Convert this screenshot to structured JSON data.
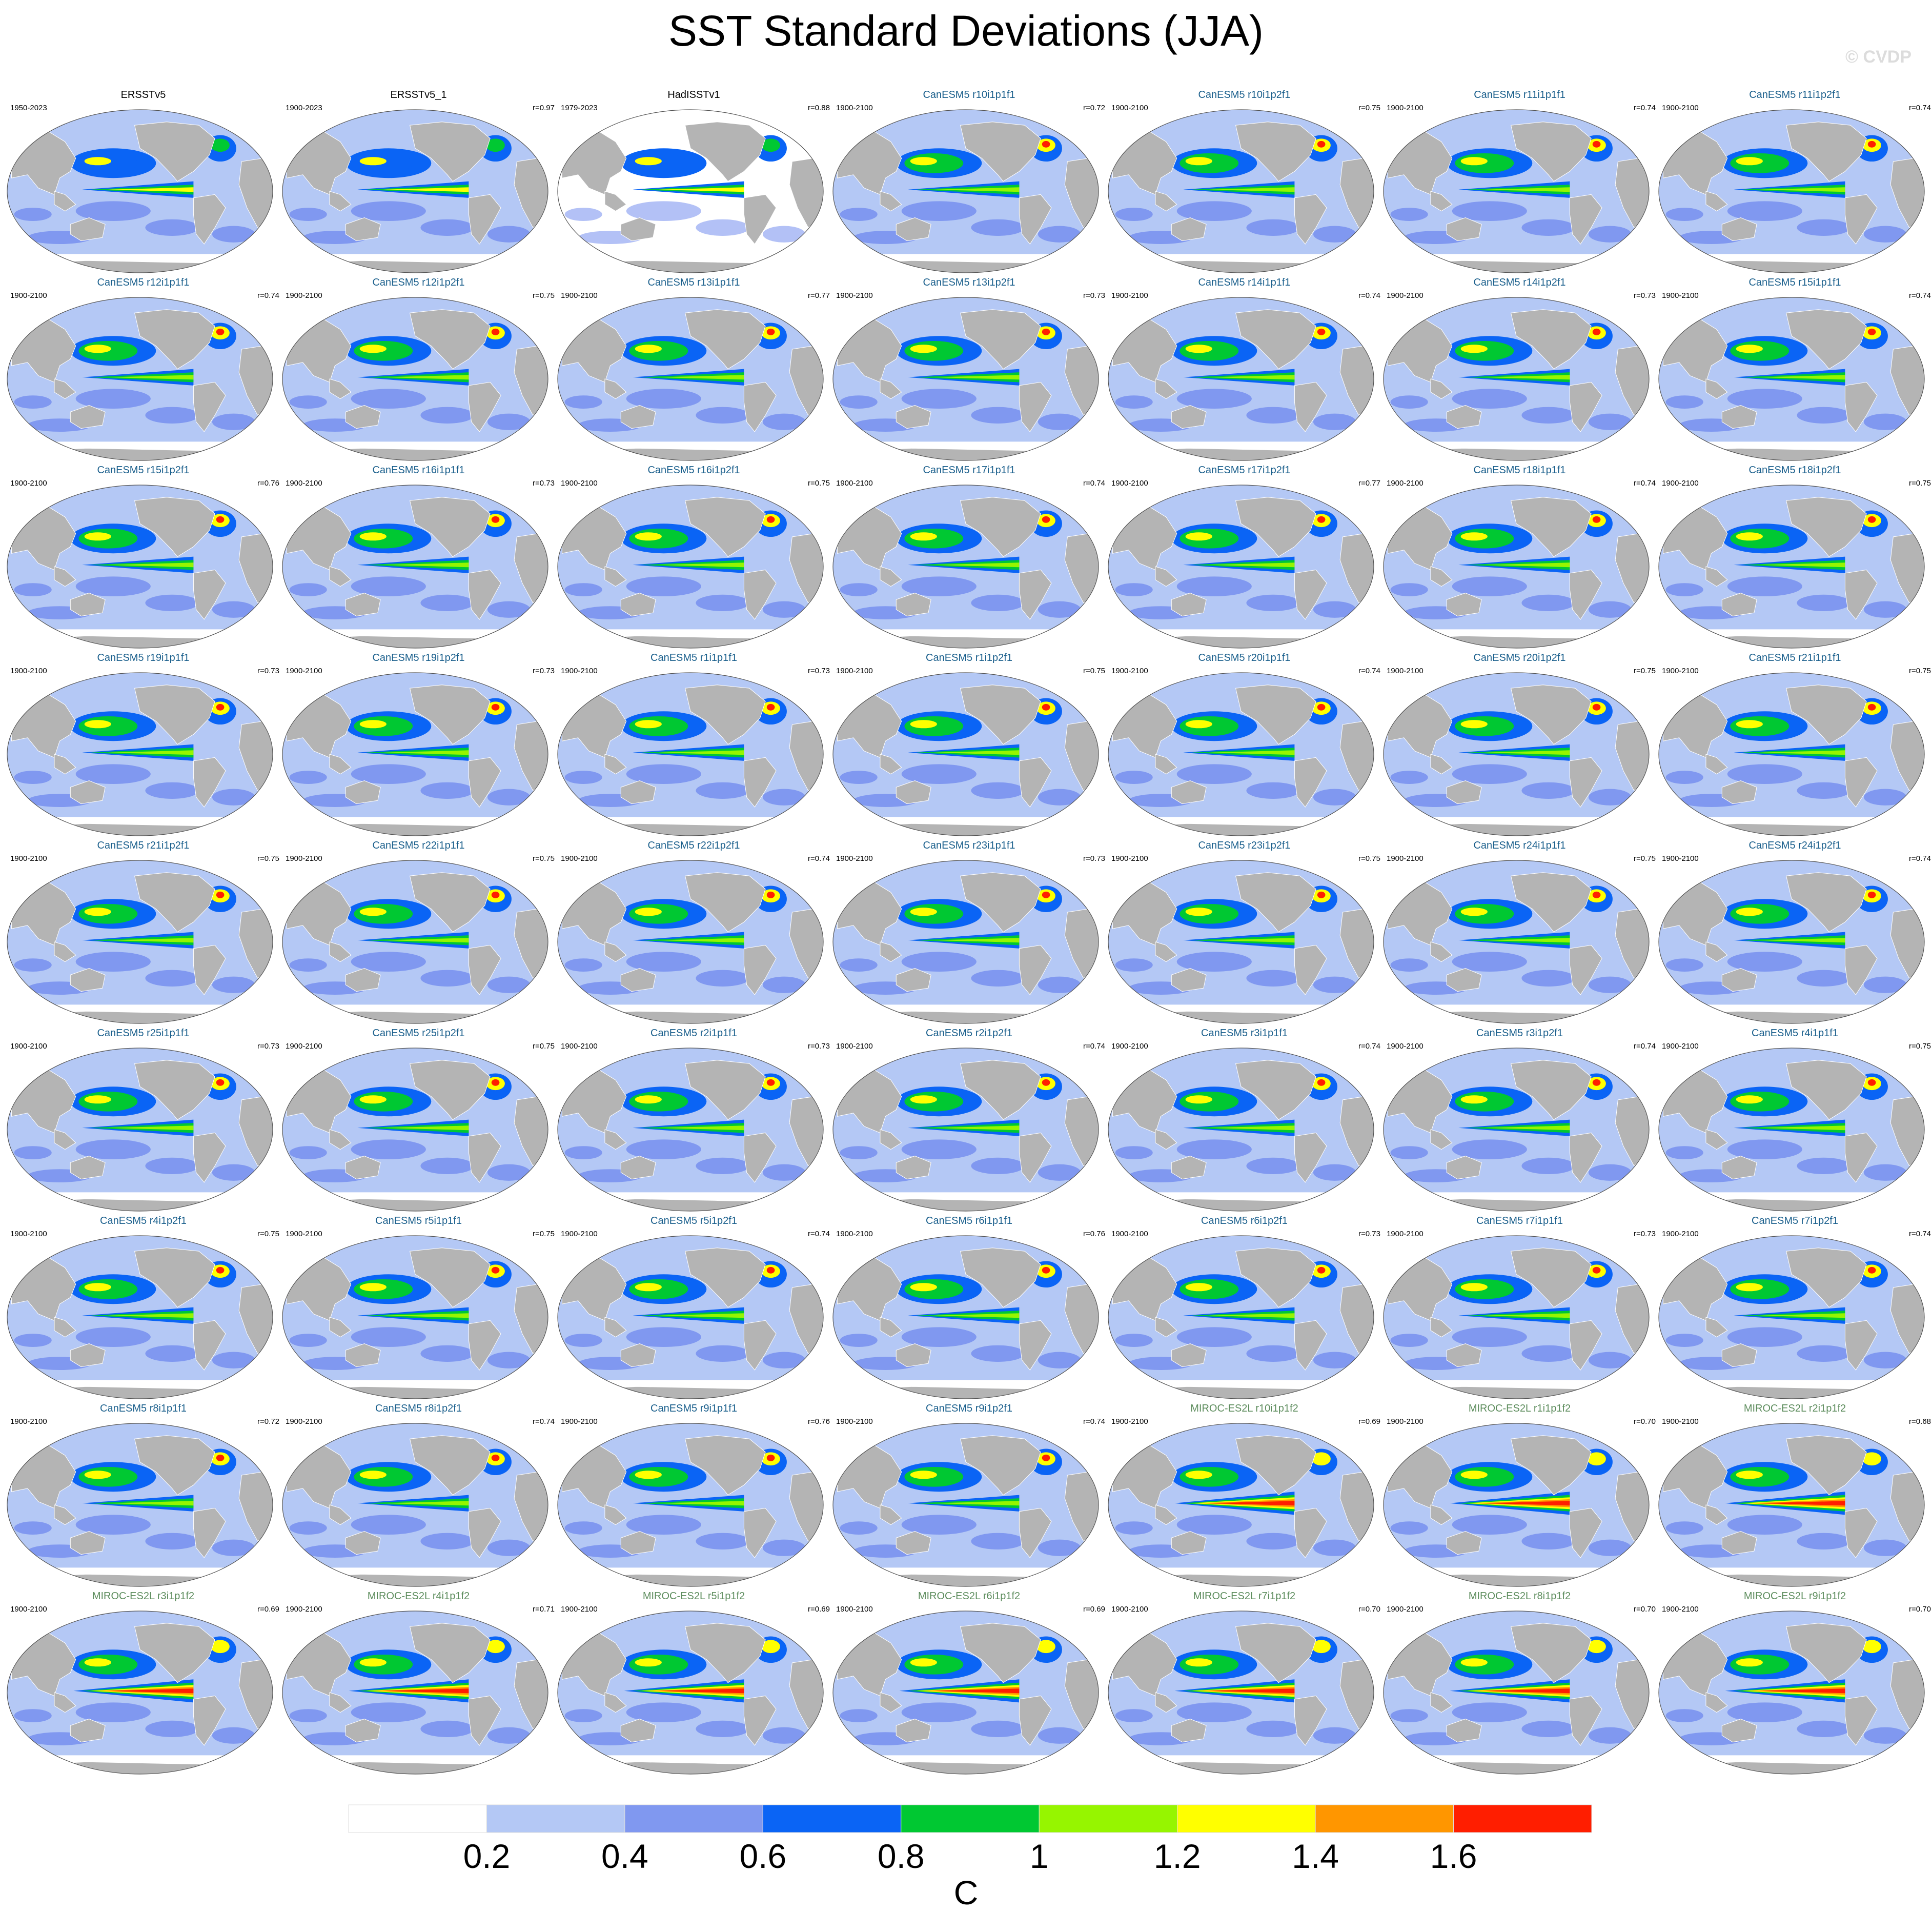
{
  "title": "SST Standard Deviations (JJA)",
  "copyright": "© CVDP",
  "colors": {
    "land": "#b4b4b4",
    "obs_title": "#000000",
    "canesm_title": "#1a5f8c",
    "miroc_title": "#5c8c5c"
  },
  "chart_data": {
    "type": "heatmap",
    "description_kind": "grid of global map panels",
    "colorbar": {
      "unit": "C",
      "tick_labels": [
        "0.2",
        "0.4",
        "0.6",
        "0.8",
        "1",
        "1.2",
        "1.4",
        "1.6"
      ],
      "levels": [
        0.2,
        0.4,
        0.6,
        0.8,
        1.0,
        1.2,
        1.4,
        1.6
      ],
      "colors": [
        "#ffffff",
        "#b4c8f5",
        "#8098f0",
        "#0a64f5",
        "#00c832",
        "#96f500",
        "#ffff00",
        "#ff9600",
        "#ff1e00"
      ]
    },
    "panels": [
      {
        "title": "ERSSTv5",
        "years": "1950-2023",
        "r": "",
        "group": "obs"
      },
      {
        "title": "ERSSTv5_1",
        "years": "1900-2023",
        "r": "r=0.97",
        "group": "obs"
      },
      {
        "title": "HadISSTv1",
        "years": "1979-2023",
        "r": "r=0.88",
        "group": "obs"
      },
      {
        "title": "CanESM5 r10i1p1f1",
        "years": "1900-2100",
        "r": "r=0.72",
        "group": "canesm"
      },
      {
        "title": "CanESM5 r10i1p2f1",
        "years": "1900-2100",
        "r": "r=0.75",
        "group": "canesm"
      },
      {
        "title": "CanESM5 r11i1p1f1",
        "years": "1900-2100",
        "r": "r=0.74",
        "group": "canesm"
      },
      {
        "title": "CanESM5 r11i1p2f1",
        "years": "1900-2100",
        "r": "r=0.74",
        "group": "canesm"
      },
      {
        "title": "CanESM5 r12i1p1f1",
        "years": "1900-2100",
        "r": "r=0.74",
        "group": "canesm"
      },
      {
        "title": "CanESM5 r12i1p2f1",
        "years": "1900-2100",
        "r": "r=0.75",
        "group": "canesm"
      },
      {
        "title": "CanESM5 r13i1p1f1",
        "years": "1900-2100",
        "r": "r=0.77",
        "group": "canesm"
      },
      {
        "title": "CanESM5 r13i1p2f1",
        "years": "1900-2100",
        "r": "r=0.73",
        "group": "canesm"
      },
      {
        "title": "CanESM5 r14i1p1f1",
        "years": "1900-2100",
        "r": "r=0.74",
        "group": "canesm"
      },
      {
        "title": "CanESM5 r14i1p2f1",
        "years": "1900-2100",
        "r": "r=0.73",
        "group": "canesm"
      },
      {
        "title": "CanESM5 r15i1p1f1",
        "years": "1900-2100",
        "r": "r=0.74",
        "group": "canesm"
      },
      {
        "title": "CanESM5 r15i1p2f1",
        "years": "1900-2100",
        "r": "r=0.76",
        "group": "canesm"
      },
      {
        "title": "CanESM5 r16i1p1f1",
        "years": "1900-2100",
        "r": "r=0.73",
        "group": "canesm"
      },
      {
        "title": "CanESM5 r16i1p2f1",
        "years": "1900-2100",
        "r": "r=0.75",
        "group": "canesm"
      },
      {
        "title": "CanESM5 r17i1p1f1",
        "years": "1900-2100",
        "r": "r=0.74",
        "group": "canesm"
      },
      {
        "title": "CanESM5 r17i1p2f1",
        "years": "1900-2100",
        "r": "r=0.77",
        "group": "canesm"
      },
      {
        "title": "CanESM5 r18i1p1f1",
        "years": "1900-2100",
        "r": "r=0.74",
        "group": "canesm"
      },
      {
        "title": "CanESM5 r18i1p2f1",
        "years": "1900-2100",
        "r": "r=0.75",
        "group": "canesm"
      },
      {
        "title": "CanESM5 r19i1p1f1",
        "years": "1900-2100",
        "r": "r=0.73",
        "group": "canesm"
      },
      {
        "title": "CanESM5 r19i1p2f1",
        "years": "1900-2100",
        "r": "r=0.73",
        "group": "canesm"
      },
      {
        "title": "CanESM5 r1i1p1f1",
        "years": "1900-2100",
        "r": "r=0.73",
        "group": "canesm"
      },
      {
        "title": "CanESM5 r1i1p2f1",
        "years": "1900-2100",
        "r": "r=0.75",
        "group": "canesm"
      },
      {
        "title": "CanESM5 r20i1p1f1",
        "years": "1900-2100",
        "r": "r=0.74",
        "group": "canesm"
      },
      {
        "title": "CanESM5 r20i1p2f1",
        "years": "1900-2100",
        "r": "r=0.75",
        "group": "canesm"
      },
      {
        "title": "CanESM5 r21i1p1f1",
        "years": "1900-2100",
        "r": "r=0.75",
        "group": "canesm"
      },
      {
        "title": "CanESM5 r21i1p2f1",
        "years": "1900-2100",
        "r": "r=0.75",
        "group": "canesm"
      },
      {
        "title": "CanESM5 r22i1p1f1",
        "years": "1900-2100",
        "r": "r=0.75",
        "group": "canesm"
      },
      {
        "title": "CanESM5 r22i1p2f1",
        "years": "1900-2100",
        "r": "r=0.74",
        "group": "canesm"
      },
      {
        "title": "CanESM5 r23i1p1f1",
        "years": "1900-2100",
        "r": "r=0.73",
        "group": "canesm"
      },
      {
        "title": "CanESM5 r23i1p2f1",
        "years": "1900-2100",
        "r": "r=0.75",
        "group": "canesm"
      },
      {
        "title": "CanESM5 r24i1p1f1",
        "years": "1900-2100",
        "r": "r=0.75",
        "group": "canesm"
      },
      {
        "title": "CanESM5 r24i1p2f1",
        "years": "1900-2100",
        "r": "r=0.74",
        "group": "canesm"
      },
      {
        "title": "CanESM5 r25i1p1f1",
        "years": "1900-2100",
        "r": "r=0.73",
        "group": "canesm"
      },
      {
        "title": "CanESM5 r25i1p2f1",
        "years": "1900-2100",
        "r": "r=0.75",
        "group": "canesm"
      },
      {
        "title": "CanESM5 r2i1p1f1",
        "years": "1900-2100",
        "r": "r=0.73",
        "group": "canesm"
      },
      {
        "title": "CanESM5 r2i1p2f1",
        "years": "1900-2100",
        "r": "r=0.74",
        "group": "canesm"
      },
      {
        "title": "CanESM5 r3i1p1f1",
        "years": "1900-2100",
        "r": "r=0.74",
        "group": "canesm"
      },
      {
        "title": "CanESM5 r3i1p2f1",
        "years": "1900-2100",
        "r": "r=0.74",
        "group": "canesm"
      },
      {
        "title": "CanESM5 r4i1p1f1",
        "years": "1900-2100",
        "r": "r=0.75",
        "group": "canesm"
      },
      {
        "title": "CanESM5 r4i1p2f1",
        "years": "1900-2100",
        "r": "r=0.75",
        "group": "canesm"
      },
      {
        "title": "CanESM5 r5i1p1f1",
        "years": "1900-2100",
        "r": "r=0.75",
        "group": "canesm"
      },
      {
        "title": "CanESM5 r5i1p2f1",
        "years": "1900-2100",
        "r": "r=0.74",
        "group": "canesm"
      },
      {
        "title": "CanESM5 r6i1p1f1",
        "years": "1900-2100",
        "r": "r=0.76",
        "group": "canesm"
      },
      {
        "title": "CanESM5 r6i1p2f1",
        "years": "1900-2100",
        "r": "r=0.73",
        "group": "canesm"
      },
      {
        "title": "CanESM5 r7i1p1f1",
        "years": "1900-2100",
        "r": "r=0.73",
        "group": "canesm"
      },
      {
        "title": "CanESM5 r7i1p2f1",
        "years": "1900-2100",
        "r": "r=0.74",
        "group": "canesm"
      },
      {
        "title": "CanESM5 r8i1p1f1",
        "years": "1900-2100",
        "r": "r=0.72",
        "group": "canesm"
      },
      {
        "title": "CanESM5 r8i1p2f1",
        "years": "1900-2100",
        "r": "r=0.74",
        "group": "canesm"
      },
      {
        "title": "CanESM5 r9i1p1f1",
        "years": "1900-2100",
        "r": "r=0.76",
        "group": "canesm"
      },
      {
        "title": "CanESM5 r9i1p2f1",
        "years": "1900-2100",
        "r": "r=0.74",
        "group": "canesm"
      },
      {
        "title": "MIROC-ES2L r10i1p1f2",
        "years": "1900-2100",
        "r": "r=0.69",
        "group": "miroc"
      },
      {
        "title": "MIROC-ES2L r1i1p1f2",
        "years": "1900-2100",
        "r": "r=0.70",
        "group": "miroc"
      },
      {
        "title": "MIROC-ES2L r2i1p1f2",
        "years": "1900-2100",
        "r": "r=0.68",
        "group": "miroc"
      },
      {
        "title": "MIROC-ES2L r3i1p1f2",
        "years": "1900-2100",
        "r": "r=0.69",
        "group": "miroc"
      },
      {
        "title": "MIROC-ES2L r4i1p1f2",
        "years": "1900-2100",
        "r": "r=0.71",
        "group": "miroc"
      },
      {
        "title": "MIROC-ES2L r5i1p1f2",
        "years": "1900-2100",
        "r": "r=0.69",
        "group": "miroc"
      },
      {
        "title": "MIROC-ES2L r6i1p1f2",
        "years": "1900-2100",
        "r": "r=0.69",
        "group": "miroc"
      },
      {
        "title": "MIROC-ES2L r7i1p1f2",
        "years": "1900-2100",
        "r": "r=0.70",
        "group": "miroc"
      },
      {
        "title": "MIROC-ES2L r8i1p1f2",
        "years": "1900-2100",
        "r": "r=0.70",
        "group": "miroc"
      },
      {
        "title": "MIROC-ES2L r9i1p1f2",
        "years": "1900-2100",
        "r": "r=0.70",
        "group": "miroc"
      }
    ]
  }
}
